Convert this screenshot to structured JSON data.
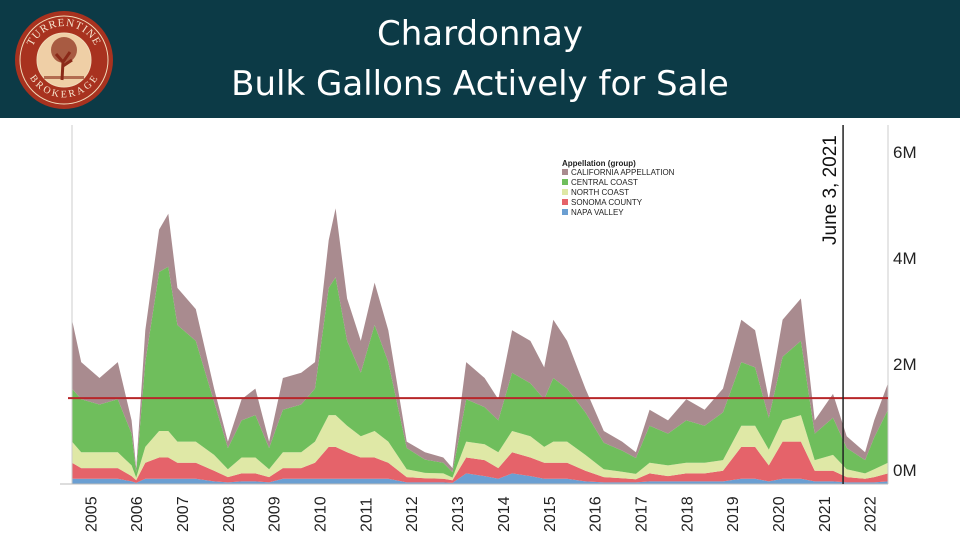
{
  "header": {
    "title_line1": "Chardonnay",
    "title_line2": "Bulk Gallons Actively for Sale",
    "logo_text": "TURRENTINE BROKERAGE"
  },
  "colors": {
    "header_bg": "#0c3a46",
    "reference_line": "#b8262a"
  },
  "chart_data": {
    "type": "area",
    "stacked": true,
    "title": "Chardonnay Bulk Gallons Actively for Sale",
    "xlabel": "",
    "ylabel": "",
    "xlim": [
      2004.6,
      2022.4
    ],
    "ylim": [
      0,
      6.8
    ],
    "y_unit": "M gallons",
    "y_ticks": [
      {
        "v": 0,
        "label": "0M"
      },
      {
        "v": 2,
        "label": "2M"
      },
      {
        "v": 4,
        "label": "4M"
      },
      {
        "v": 6,
        "label": "6M"
      }
    ],
    "x_ticks": [
      "2005",
      "2006",
      "2007",
      "2008",
      "2009",
      "2010",
      "2011",
      "2012",
      "2013",
      "2014",
      "2015",
      "2016",
      "2017",
      "2018",
      "2019",
      "2020",
      "2021",
      "2022"
    ],
    "legend": {
      "title": "Appellation (group)",
      "position": "top-center"
    },
    "reference_line": {
      "value": 1.62
    },
    "annotation": {
      "label": "June 3, 2021",
      "x": 2021.42
    },
    "x": [
      2004.6,
      2004.8,
      2005.2,
      2005.6,
      2005.9,
      2006.0,
      2006.2,
      2006.5,
      2006.7,
      2006.9,
      2007.3,
      2007.7,
      2008.0,
      2008.3,
      2008.6,
      2008.9,
      2009.2,
      2009.6,
      2009.9,
      2010.2,
      2010.35,
      2010.6,
      2010.9,
      2011.2,
      2011.5,
      2011.9,
      2012.3,
      2012.7,
      2012.9,
      2013.2,
      2013.6,
      2013.9,
      2014.2,
      2014.6,
      2014.9,
      2015.1,
      2015.4,
      2015.8,
      2016.2,
      2016.6,
      2016.9,
      2017.2,
      2017.6,
      2018.0,
      2018.4,
      2018.8,
      2019.2,
      2019.5,
      2019.8,
      2020.1,
      2020.5,
      2020.8,
      2021.2,
      2021.5,
      2021.9,
      2022.1,
      2022.4
    ],
    "series": [
      {
        "name": "NAPA VALLEY",
        "color": "#6b9fd2",
        "values": [
          0.1,
          0.1,
          0.1,
          0.1,
          0.05,
          0.02,
          0.1,
          0.1,
          0.1,
          0.1,
          0.1,
          0.05,
          0.03,
          0.05,
          0.05,
          0.03,
          0.1,
          0.1,
          0.1,
          0.1,
          0.1,
          0.1,
          0.1,
          0.1,
          0.1,
          0.03,
          0.03,
          0.03,
          0.02,
          0.2,
          0.15,
          0.1,
          0.2,
          0.15,
          0.1,
          0.1,
          0.1,
          0.05,
          0.03,
          0.03,
          0.03,
          0.05,
          0.05,
          0.05,
          0.05,
          0.05,
          0.1,
          0.1,
          0.05,
          0.1,
          0.1,
          0.05,
          0.05,
          0.03,
          0.03,
          0.03,
          0.05
        ]
      },
      {
        "name": "SONOMA COUNTY",
        "color": "#e5636a",
        "values": [
          0.3,
          0.2,
          0.2,
          0.2,
          0.1,
          0.05,
          0.3,
          0.4,
          0.4,
          0.3,
          0.3,
          0.2,
          0.1,
          0.15,
          0.15,
          0.1,
          0.2,
          0.2,
          0.3,
          0.6,
          0.6,
          0.5,
          0.4,
          0.4,
          0.3,
          0.1,
          0.08,
          0.07,
          0.05,
          0.3,
          0.3,
          0.2,
          0.4,
          0.35,
          0.3,
          0.3,
          0.3,
          0.2,
          0.1,
          0.08,
          0.06,
          0.15,
          0.1,
          0.15,
          0.15,
          0.2,
          0.6,
          0.6,
          0.3,
          0.7,
          0.7,
          0.2,
          0.2,
          0.1,
          0.07,
          0.1,
          0.15
        ]
      },
      {
        "name": "NORTH COAST",
        "color": "#dfe8a6",
        "values": [
          0.4,
          0.3,
          0.3,
          0.3,
          0.2,
          0.05,
          0.3,
          0.5,
          0.5,
          0.4,
          0.4,
          0.3,
          0.15,
          0.3,
          0.3,
          0.15,
          0.3,
          0.3,
          0.4,
          0.6,
          0.6,
          0.5,
          0.4,
          0.5,
          0.4,
          0.15,
          0.1,
          0.1,
          0.05,
          0.3,
          0.3,
          0.3,
          0.4,
          0.4,
          0.3,
          0.4,
          0.4,
          0.3,
          0.15,
          0.12,
          0.1,
          0.2,
          0.2,
          0.2,
          0.2,
          0.2,
          0.4,
          0.4,
          0.3,
          0.4,
          0.5,
          0.2,
          0.3,
          0.15,
          0.1,
          0.15,
          0.2
        ]
      },
      {
        "name": "CENTRAL COAST",
        "color": "#6fbe5c",
        "values": [
          1.0,
          1.0,
          0.9,
          1.0,
          0.6,
          0.1,
          1.6,
          3.0,
          3.1,
          2.2,
          1.9,
          1.0,
          0.4,
          0.7,
          0.8,
          0.4,
          0.8,
          0.9,
          1.0,
          2.4,
          2.6,
          1.6,
          1.2,
          2.0,
          1.5,
          0.4,
          0.25,
          0.2,
          0.1,
          0.8,
          0.7,
          0.6,
          1.1,
          1.0,
          0.9,
          1.2,
          1.0,
          0.8,
          0.5,
          0.4,
          0.3,
          0.7,
          0.6,
          0.8,
          0.7,
          0.9,
          1.2,
          1.1,
          0.6,
          1.2,
          1.4,
          0.5,
          0.7,
          0.4,
          0.25,
          0.6,
          1.0
        ]
      },
      {
        "name": "CALIFORNIA APPELLATION",
        "color": "#a98b8f",
        "values": [
          1.3,
          0.7,
          0.5,
          0.7,
          0.25,
          0.08,
          0.6,
          0.8,
          1.0,
          0.7,
          0.6,
          0.25,
          0.12,
          0.4,
          0.5,
          0.12,
          0.6,
          0.6,
          0.5,
          0.9,
          1.3,
          0.8,
          0.6,
          0.8,
          0.6,
          0.12,
          0.14,
          0.1,
          0.08,
          0.7,
          0.55,
          0.4,
          0.8,
          0.8,
          0.6,
          1.1,
          0.9,
          0.45,
          0.22,
          0.17,
          0.11,
          0.3,
          0.25,
          0.4,
          0.3,
          0.45,
          0.8,
          0.7,
          0.35,
          0.7,
          0.8,
          0.25,
          0.45,
          0.22,
          0.15,
          0.32,
          0.5
        ]
      }
    ]
  }
}
